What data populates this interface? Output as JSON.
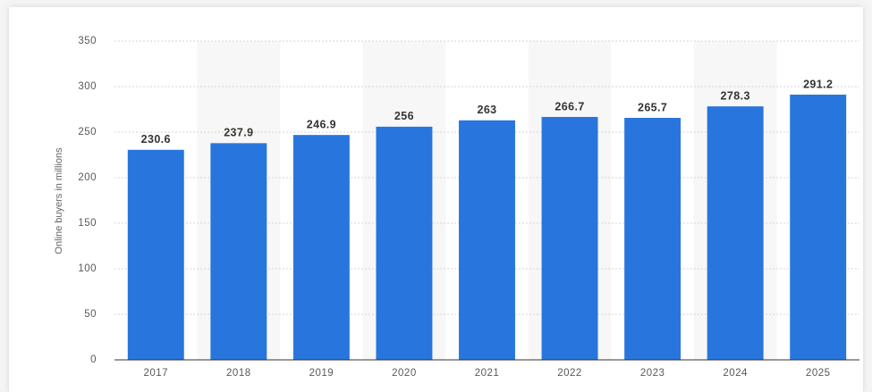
{
  "chart_data": {
    "type": "bar",
    "y_label": "Online buyers in millions",
    "categories": [
      "2017",
      "2018",
      "2019",
      "2020",
      "2021",
      "2022",
      "2023",
      "2024",
      "2025"
    ],
    "values": [
      230.6,
      237.9,
      246.9,
      256,
      263,
      266.7,
      265.7,
      278.3,
      291.2
    ],
    "color": "#2876dd",
    "ylim": [
      0,
      350
    ],
    "yticks": [
      0,
      50,
      100,
      150,
      200,
      250,
      300,
      350
    ],
    "grid": true
  }
}
